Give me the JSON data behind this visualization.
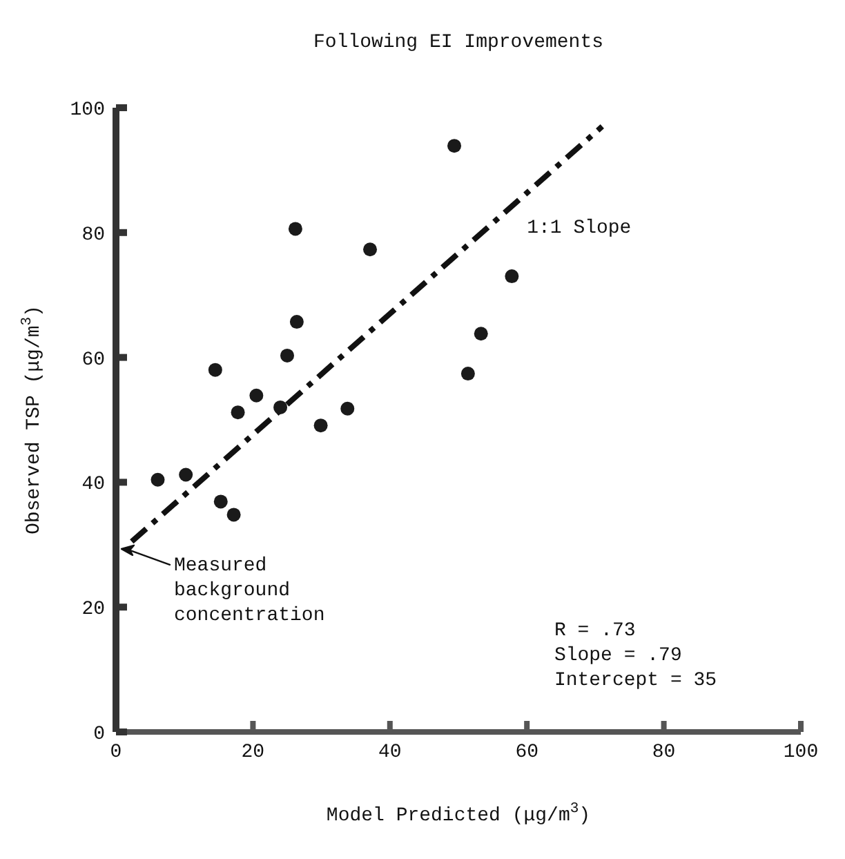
{
  "chart_data": {
    "type": "scatter",
    "title": "Following EI Improvements",
    "xlabel": "Model Predicted (μg/m$^{3}$)",
    "ylabel": "Observed TSP (μg/m$^{3}$)",
    "xlim": [
      0,
      100
    ],
    "ylim": [
      0,
      100
    ],
    "xticks": [
      0,
      20,
      40,
      60,
      80,
      100
    ],
    "yticks": [
      0,
      20,
      40,
      60,
      80,
      100
    ],
    "grid": false,
    "marker": "circle",
    "series": [
      {
        "color": "#1a1a1a",
        "x": [
          49.4,
          26.2,
          37.1,
          26.4,
          53.3,
          25.0,
          14.5,
          51.4,
          20.5,
          17.8,
          33.8,
          29.9,
          24.0,
          57.8,
          6.1,
          10.2,
          15.3,
          17.2
        ],
        "values": [
          93.9,
          80.6,
          77.3,
          65.7,
          63.8,
          60.3,
          58.0,
          57.4,
          53.9,
          51.2,
          51.8,
          49.1,
          52.0,
          73.0,
          40.4,
          41.2,
          36.9,
          34.8
        ]
      },
      {
        "type": "line",
        "color": "#111111",
        "line_style": "dashed",
        "marker": "none",
        "x": [
          2.3,
          71
        ],
        "values": [
          30.5,
          97
        ]
      }
    ],
    "annotations": [
      "1:1 Slope",
      "Measured\nbackground\nconcentration",
      "R = .73\nSlope = .79\nIntercept = 35"
    ]
  }
}
